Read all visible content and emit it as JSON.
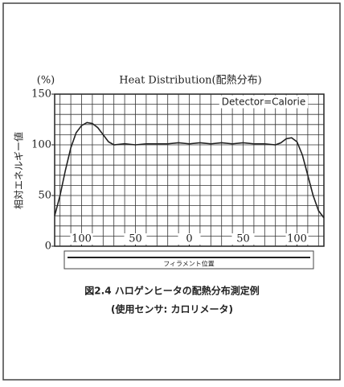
{
  "chart_data": {
    "type": "line",
    "title": "Heat Distribution(配熱分布)",
    "y_unit": "(%)",
    "ylabel": "相対エネルギー値",
    "annotation": "Detector=Calorie",
    "filament_label": "フィラメント位置",
    "caption": [
      "図2.4 ハロゲンヒータの配熱分布測定例",
      "(使用センサ: カロリメータ)"
    ],
    "x": [
      -125,
      -120,
      -115,
      -110,
      -105,
      -100,
      -95,
      -90,
      -85,
      -80,
      -75,
      -70,
      -60,
      -50,
      -40,
      -30,
      -20,
      -10,
      0,
      10,
      20,
      30,
      40,
      50,
      60,
      70,
      80,
      85,
      90,
      95,
      100,
      105,
      110,
      115,
      120,
      125
    ],
    "series": [
      {
        "color": "#222222",
        "values": [
          30,
          50,
          75,
          97,
          112,
          119,
          122,
          121,
          117,
          110,
          103,
          100,
          101,
          100,
          101,
          101,
          101,
          102,
          101,
          102,
          101,
          102,
          101,
          102,
          101,
          101,
          100,
          102,
          106,
          107,
          103,
          90,
          70,
          50,
          35,
          28
        ]
      }
    ],
    "xlim": [
      -125,
      125
    ],
    "ylim": [
      0,
      150
    ],
    "xticks": [
      {
        "value": -100,
        "label": "100"
      },
      {
        "value": -50,
        "label": "50"
      },
      0,
      50,
      100
    ],
    "yticks": [
      0,
      50,
      100,
      150
    ],
    "x_minor_ticks": [
      -120,
      -110,
      -100,
      -90,
      -80,
      -70,
      -60,
      -50,
      -40,
      -30,
      -20,
      -10,
      0,
      10,
      20,
      30,
      40,
      50,
      60,
      70,
      80,
      90,
      100,
      110,
      120
    ],
    "y_minor_ticks": [
      10,
      20,
      30,
      40,
      50,
      60,
      70,
      80,
      90,
      100,
      110,
      120,
      130,
      140
    ],
    "grid": true
  }
}
